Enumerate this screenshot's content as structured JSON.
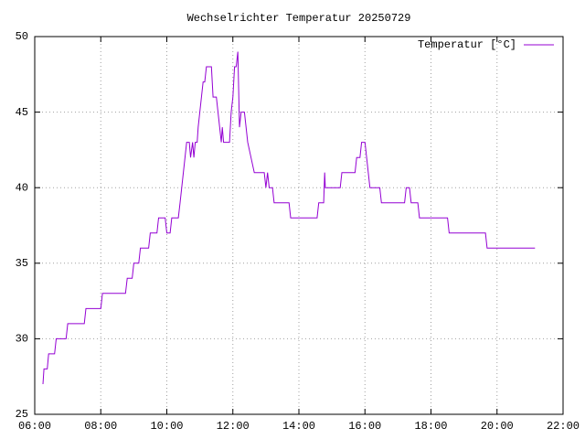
{
  "chart_data": {
    "type": "line",
    "title": "Wechselrichter Temperatur 20250729",
    "legend": "top-right",
    "grid": true,
    "xlim": [
      6,
      22
    ],
    "xticks": [
      {
        "value": 6,
        "label": "06:00"
      },
      {
        "value": 8,
        "label": "08:00"
      },
      {
        "value": 10,
        "label": "10:00"
      },
      {
        "value": 12,
        "label": "12:00"
      },
      {
        "value": 14,
        "label": "14:00"
      },
      {
        "value": 16,
        "label": "16:00"
      },
      {
        "value": 18,
        "label": "18:00"
      },
      {
        "value": 20,
        "label": "20:00"
      },
      {
        "value": 22,
        "label": "22:00"
      }
    ],
    "ylim": [
      25,
      50
    ],
    "yticks": [
      25,
      30,
      35,
      40,
      45,
      50
    ],
    "series": [
      {
        "name": "Temperatur [°C]",
        "color": "#9400d3",
        "x": [
          6.25,
          6.28,
          6.38,
          6.42,
          6.6,
          6.65,
          6.95,
          7.0,
          7.5,
          7.55,
          8.0,
          8.05,
          8.75,
          8.8,
          8.95,
          9.0,
          9.15,
          9.2,
          9.45,
          9.5,
          9.7,
          9.75,
          9.95,
          10.0,
          10.1,
          10.15,
          10.35,
          10.4,
          10.45,
          10.5,
          10.55,
          10.6,
          10.68,
          10.72,
          10.78,
          10.82,
          10.86,
          10.92,
          10.95,
          11.0,
          11.05,
          11.1,
          11.15,
          11.2,
          11.35,
          11.4,
          11.5,
          11.55,
          11.6,
          11.65,
          11.68,
          11.72,
          11.9,
          11.95,
          12.0,
          12.05,
          12.1,
          12.15,
          12.2,
          12.25,
          12.35,
          12.4,
          12.45,
          12.55,
          12.65,
          12.95,
          13.0,
          13.05,
          13.1,
          13.2,
          13.25,
          13.7,
          13.75,
          14.55,
          14.6,
          14.75,
          14.78,
          14.8,
          15.25,
          15.3,
          15.7,
          15.75,
          15.85,
          15.9,
          16.0,
          16.05,
          16.1,
          16.15,
          16.45,
          16.5,
          17.2,
          17.25,
          17.35,
          17.4,
          17.6,
          17.65,
          18.5,
          18.55,
          19.65,
          19.7,
          21.15
        ],
        "values": [
          27,
          28,
          28,
          29,
          29,
          30,
          30,
          31,
          31,
          32,
          32,
          33,
          33,
          34,
          34,
          35,
          35,
          36,
          36,
          37,
          37,
          38,
          38,
          37,
          37,
          38,
          38,
          39,
          40,
          41,
          42,
          43,
          43,
          42,
          43,
          42,
          43,
          43,
          44,
          45,
          46,
          47,
          47,
          48,
          48,
          46,
          46,
          45,
          44,
          43,
          44,
          43,
          43,
          45,
          46,
          48,
          48,
          49,
          44,
          45,
          45,
          44,
          43,
          42,
          41,
          41,
          40,
          41,
          40,
          40,
          39,
          39,
          38,
          38,
          39,
          39,
          41,
          40,
          40,
          41,
          41,
          42,
          42,
          43,
          43,
          42,
          41,
          40,
          40,
          39,
          39,
          40,
          40,
          39,
          39,
          38,
          38,
          37,
          37,
          36,
          36
        ]
      }
    ]
  }
}
